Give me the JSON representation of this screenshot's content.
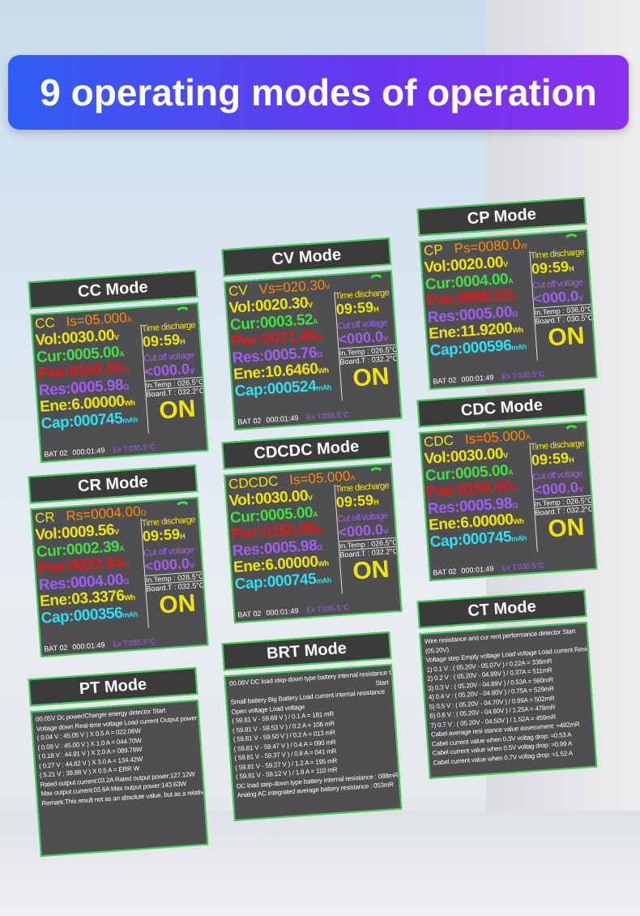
{
  "header": {
    "title": "9 operating modes of operation"
  },
  "panels": [
    {
      "mode": "CC Mode",
      "kind": "screen",
      "head": [
        "CC",
        "Is=05.000",
        "A"
      ],
      "rows": [
        [
          "Vol:",
          "0030.00",
          "V"
        ],
        [
          "Cur:",
          "0005.00",
          "A"
        ],
        [
          "Pwr:",
          "0150.00",
          "W"
        ],
        [
          "Res:",
          "0005.98",
          "Ω"
        ],
        [
          "Ene:",
          "6.00000",
          "Wh"
        ],
        [
          "Cap:",
          "000745",
          "mAh"
        ]
      ],
      "time_label": "Time discharge",
      "time": "09:59",
      "time_unit": "H",
      "cutoff_label": "Cut off voltage",
      "cutoff": "<000.0",
      "cutoff_unit": "V",
      "in_temp": "In.Temp : 026.5°C",
      "board_t": "Board.T : 032.2°C",
      "state": "ON",
      "bat": "BAT 02",
      "clock": "000:01:49",
      "ex_t": "Ex T:035.5°C"
    },
    {
      "mode": "CV Mode",
      "kind": "screen",
      "head": [
        "CV",
        "Vs=020.30",
        "V"
      ],
      "rows": [
        [
          "Vol:",
          "0020.30",
          "V"
        ],
        [
          "Cur:",
          "0003.52",
          "A"
        ],
        [
          "Pwr:",
          "0071.45",
          "W"
        ],
        [
          "Res:",
          "0005.76",
          "Ω"
        ],
        [
          "Ene:",
          "10.6460",
          "Wh"
        ],
        [
          "Cap:",
          "000524",
          "mAh"
        ]
      ],
      "time_label": "Time discharge",
      "time": "09:59",
      "time_unit": "H",
      "cutoff_label": "Cut off voltage",
      "cutoff": "<000.0",
      "cutoff_unit": "V",
      "in_temp": "In.Temp : 026.5°C",
      "board_t": "Board.T : 032.2°C",
      "state": "ON",
      "bat": "BAT 02",
      "clock": "000:01:49",
      "ex_t": "Ex T:035.5°C"
    },
    {
      "mode": "CP Mode",
      "kind": "screen",
      "head": [
        "CP",
        "Ps=0080.0",
        "W"
      ],
      "rows": [
        [
          "Vol:",
          "0020.00",
          "V"
        ],
        [
          "Cur:",
          "0004.00",
          "A"
        ],
        [
          "Pwr:",
          "0080.00",
          "W"
        ],
        [
          "Res:",
          "0005.00",
          "Ω"
        ],
        [
          "Ene:",
          "11.9200",
          "Wh"
        ],
        [
          "Cap:",
          "000596",
          "mAh"
        ]
      ],
      "time_label": "Time discharge",
      "time": "09:59",
      "time_unit": "H",
      "cutoff_label": "Cut off voltage",
      "cutoff": "<000.0",
      "cutoff_unit": "V",
      "in_temp": "In.Temp : 036.0°C",
      "board_t": "Board.T : 030.5°C",
      "state": "ON",
      "bat": "BAT 02",
      "clock": "000:01:49",
      "ex_t": "Ex T:030.5°C"
    },
    {
      "mode": "CR Mode",
      "kind": "screen",
      "head": [
        "CR",
        "Rs=0004.00",
        "Ω"
      ],
      "rows": [
        [
          "Vol:",
          "0009.56",
          "V"
        ],
        [
          "Cur:",
          "0002.39",
          "A"
        ],
        [
          "Pwr:",
          "0022.84",
          "W"
        ],
        [
          "Res:",
          "0004.00",
          "Ω"
        ],
        [
          "Ene:",
          "03.3376",
          "Wh"
        ],
        [
          "Cap:",
          "000356",
          "mAh"
        ]
      ],
      "time_label": "Time discharge",
      "time": "09:59",
      "time_unit": "H",
      "cutoff_label": "Cut off voltage",
      "cutoff": "<000.0",
      "cutoff_unit": "V",
      "in_temp": "In.Temp : 028.5°C",
      "board_t": "Board.T : 032.5°C",
      "state": "ON",
      "bat": "BAT 02",
      "clock": "000:01:49",
      "ex_t": "Ex T:035.5°C"
    },
    {
      "mode": "CDCDC Mode",
      "kind": "screen",
      "head": [
        "CDCDC",
        "Is=05.000",
        "A"
      ],
      "rows": [
        [
          "Vol:",
          "0030.00",
          "V"
        ],
        [
          "Cur:",
          "0005.00",
          "A"
        ],
        [
          "Pwr:",
          "0150.00",
          "W"
        ],
        [
          "Res:",
          "0005.98",
          "Ω"
        ],
        [
          "Ene:",
          "6.00000",
          "Wh"
        ],
        [
          "Cap:",
          "000745",
          "mAh"
        ]
      ],
      "time_label": "Time discharge",
      "time": "09:59",
      "time_unit": "H",
      "cutoff_label": "Cut off voltage",
      "cutoff": "<000.0",
      "cutoff_unit": "V",
      "in_temp": "In.Temp : 026.5°C",
      "board_t": "Board.T : 032.2°C",
      "state": "ON",
      "bat": "BAT 02",
      "clock": "000:01:49",
      "ex_t": "Ex T:035.5°C"
    },
    {
      "mode": "CDC Mode",
      "kind": "screen",
      "head": [
        "CDC",
        "Is=05.000",
        "A"
      ],
      "rows": [
        [
          "Vol:",
          "0030.00",
          "V"
        ],
        [
          "Cur:",
          "0005.00",
          "A"
        ],
        [
          "Pwr:",
          "0150.00",
          "W"
        ],
        [
          "Res:",
          "0005.98",
          "Ω"
        ],
        [
          "Ene:",
          "6.00000",
          "Wh"
        ],
        [
          "Cap:",
          "000745",
          "mAh"
        ]
      ],
      "time_label": "Time discharge",
      "time": "09:59",
      "time_unit": "H",
      "cutoff_label": "Cut off voltage",
      "cutoff": "<000.0",
      "cutoff_unit": "V",
      "in_temp": "In.Temp : 026.5°C",
      "board_t": "Board.T : 032.2°C",
      "state": "ON",
      "bat": "BAT 02",
      "clock": "000:01:49",
      "ex_t": "Ex T:035.5°C"
    },
    {
      "mode": "PT Mode",
      "kind": "text",
      "lines": [
        "00.05V   Dc power/Charger energy detector   Start",
        "Voltage down   Real-time voltage   Load current   Output power",
        "( 0.04 V  :   45.05 V )  X  0.5 A  =  022.06W",
        "( 0.09 V  :   45.00 V )  X  1.0 A  =  044.70W",
        "( 0.18 V  :   44.91 V )  X  2.0 A  =  089.79W",
        "( 0.27 V  :   44.82 V )  X  3.0 A  =  134.42W",
        "( 5.21 V  :   39.88 V )  X  0.5 A  =  ERR  W",
        "Rated output current:03.2A    Rated output power:127.12W",
        "Max output current:03.6A    Max output power:143.63W",
        "Remark:This result not as an absolute value, but as a relative value"
      ]
    },
    {
      "mode": "BRT Mode",
      "kind": "text",
      "lines": [
        "00.06V DC load step-down type battery internal resistance testing",
        "Start",
        "Small battery   Big Battery   Load current   internal resistance",
        "Open voltage   Load voltage",
        "( 59.81 V  -  59.69 V )  /  0.1 A  =  181 mR",
        "( 59.81 V  -  59.53 V )  /  0.2 A  =  106 mR",
        "( 59.81 V  -  59.50 V )  /  0.2 A  =  013 mR",
        "( 59.81 V  -  59.47 V )  /  0.4 A  =  090 mR",
        "( 59.81 V  -  59.37 V )  /  0.8 A  =  041 mR",
        "( 59.81 V  -  59.27 V )  /  1.2 A  =  195 mR",
        "( 59.81 V  -  59.12 V )  /  1.8 A  =  110 mR",
        "DC load step-down type battery internal resistance : 088mR",
        "Analog AC integrated average battery resistance : 053mR"
      ]
    },
    {
      "mode": "CT Mode",
      "kind": "text",
      "lines": [
        "Wire resistance and cur rent performance detector   Start",
        "(05.20V)",
        "Voltage step  Empty voltage  Load voltage  Load current  Resistance",
        "1) 0.1 V : ( 05.20V  -  05.07V )  /  0.22A  =  336mR",
        "2) 0.2 V : ( 05.20V  -  04.99V )  /  0.37A  =  511mR",
        "3) 0.3 V : ( 05.20V  -  04.89V )  /  0.53A  =  560mR",
        "4) 0.4 V : ( 05.20V  -  04.80V )  /  0.75A  =  529mR",
        "5) 0.5 V : ( 05.20V  -  04.70V )  /  0.99A  =  502mR",
        "6) 0.6 V : ( 05.20V  -  04.60V )  /  1.25A  =  478mR",
        "7) 0.7 V : ( 05.20V  -  04.50V )  /  1.52A  =  459mR",
        "Cabel average resi stance value assessment: ≈482mR",
        "Cabel current value when 0.3V voltag drop: ≈0.53 A",
        "Cabel current value when 0.5V voltag drop: ≈0.99 A",
        "Cabel current value when 0.7V voltag drop: ≈1.52 A"
      ]
    }
  ]
}
